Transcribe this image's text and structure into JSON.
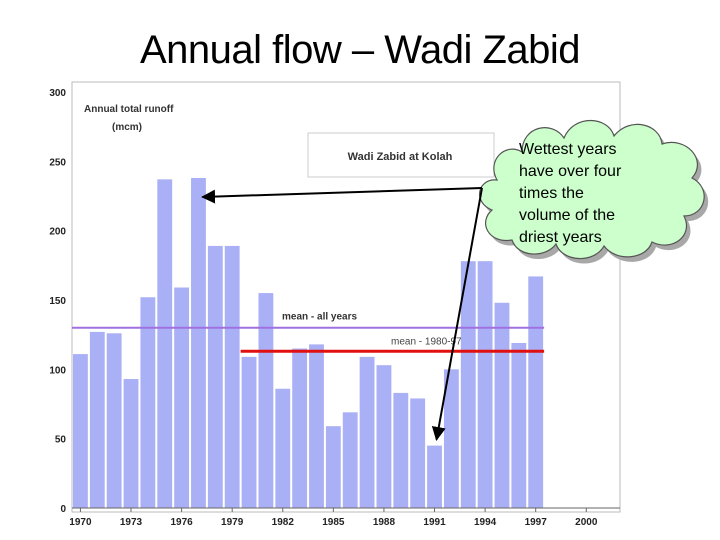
{
  "slide": {
    "title": "Annual flow – Wadi Zabid"
  },
  "chart_data": {
    "type": "bar",
    "ylabel_lines": [
      "Annual total runoff",
      "(mcm)"
    ],
    "legend_box": "Wadi Zabid at Kolah",
    "x": [
      1970,
      1971,
      1972,
      1973,
      1974,
      1975,
      1976,
      1977,
      1978,
      1979,
      1980,
      1981,
      1982,
      1983,
      1984,
      1985,
      1986,
      1987,
      1988,
      1989,
      1990,
      1991,
      1992,
      1993,
      1994,
      1995,
      1996,
      1997
    ],
    "values": [
      111,
      127,
      126,
      93,
      152,
      237,
      159,
      238,
      189,
      189,
      109,
      155,
      86,
      115,
      118,
      59,
      69,
      109,
      103,
      83,
      79,
      45,
      100,
      178,
      178,
      148,
      119,
      167
    ],
    "xtick_labels": [
      "1970",
      "1973",
      "1976",
      "1979",
      "1982",
      "1985",
      "1988",
      "1991",
      "1994",
      "1997",
      "2000"
    ],
    "xtick_values": [
      1970,
      1973,
      1976,
      1979,
      1982,
      1985,
      1988,
      1991,
      1994,
      1997,
      2000
    ],
    "ytick_labels": [
      "0",
      "50",
      "100",
      "150",
      "200",
      "250",
      "300"
    ],
    "ytick_values": [
      0,
      50,
      100,
      150,
      200,
      250,
      300
    ],
    "xlim": [
      1969.5,
      2002
    ],
    "ylim": [
      0,
      300
    ],
    "bar_color": "#aab0f5",
    "lines": [
      {
        "label": "mean - all years",
        "value": 130,
        "from": 1970,
        "to": 1997,
        "color": "#a070e0"
      },
      {
        "label": "mean - 1980-97",
        "value": 113,
        "from": 1980,
        "to": 1997,
        "color": "#e01010"
      }
    ],
    "annotation": {
      "lines": [
        "Wettest years",
        "have over four",
        "times the",
        "volume of the",
        "driest years"
      ],
      "cloud_color": "#ccffcc",
      "points_to": [
        1977,
        1991
      ]
    }
  }
}
